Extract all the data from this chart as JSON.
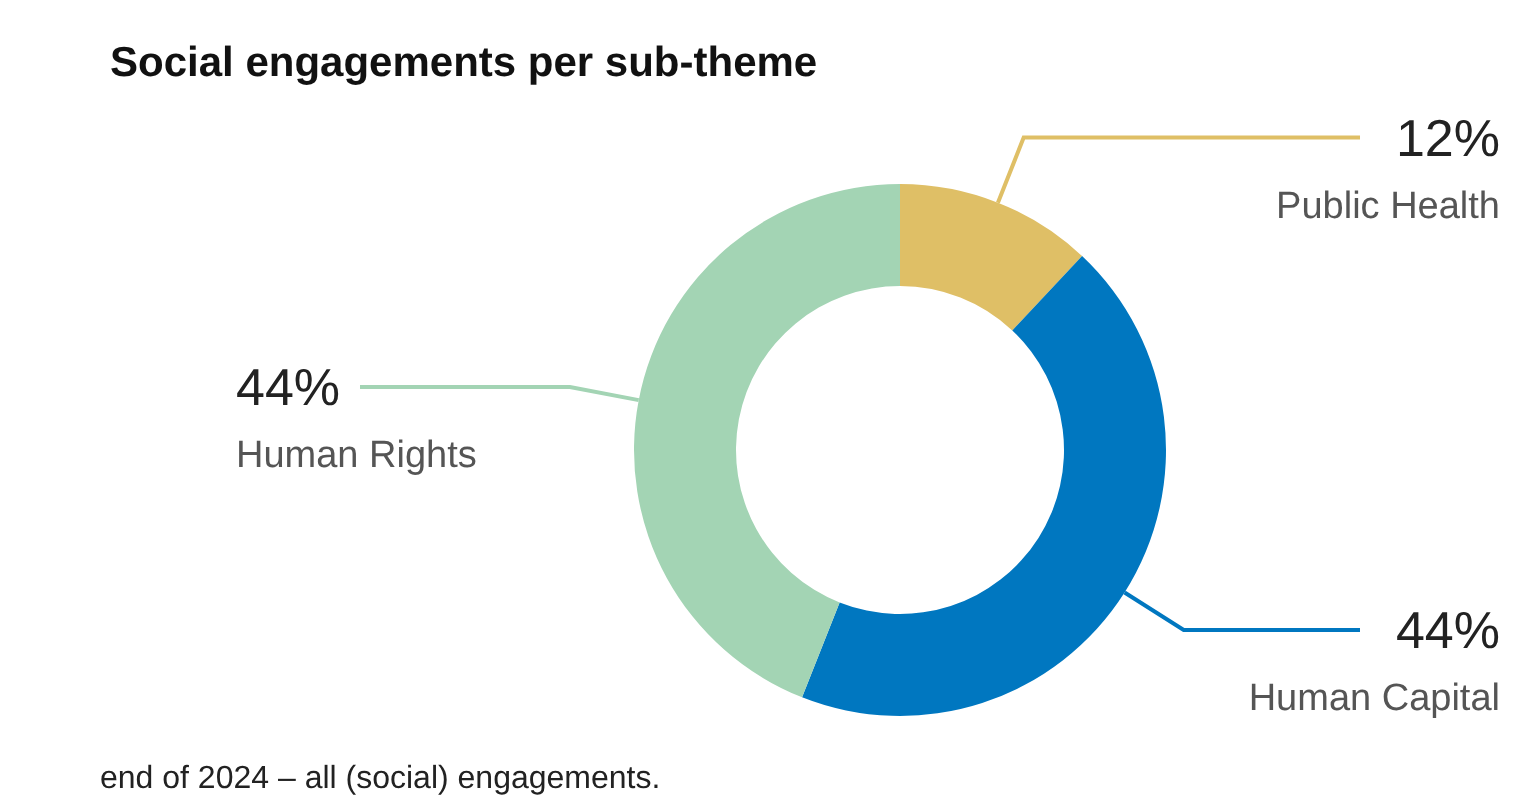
{
  "chart_data": {
    "type": "donut",
    "title": "Social engagements per sub-theme",
    "categories": [
      "Public Health",
      "Human Capital",
      "Human Rights"
    ],
    "values": [
      12,
      44,
      44
    ],
    "value_labels": [
      "12%",
      "44%",
      "44%"
    ],
    "colors": [
      "#dfbf66",
      "#0077c0",
      "#a3d4b4"
    ],
    "annotations": [
      "end of 2024 – all (social) engagements."
    ]
  }
}
